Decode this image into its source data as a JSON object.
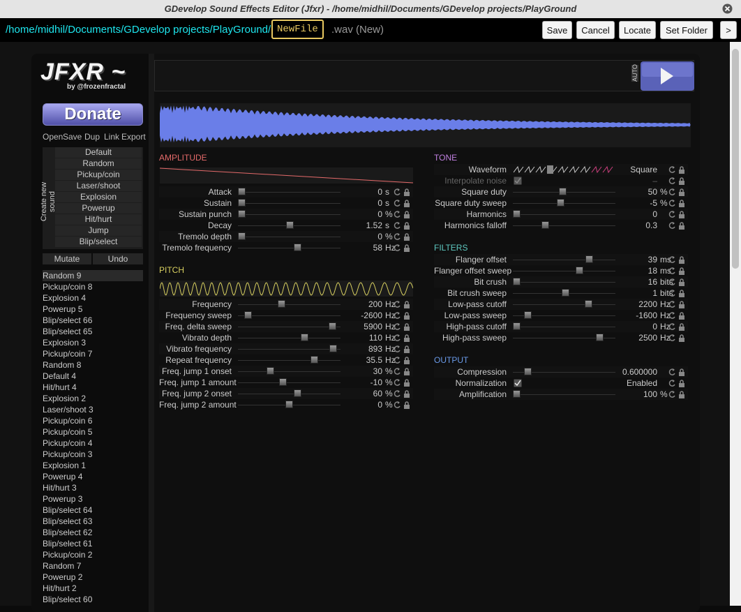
{
  "window": {
    "title": "GDevelop Sound Effects Editor (Jfxr) - /home/midhil/Documents/GDevelop projects/PlayGround"
  },
  "toolbar": {
    "path": "/home/midhil/Documents/GDevelop projects/PlayGround/",
    "filename": "NewFile",
    "suffix": ".wav (New)",
    "buttons": [
      "Save",
      "Cancel",
      "Locate",
      "Set Folder",
      ">"
    ]
  },
  "sidebar": {
    "logo": "JFXR ~",
    "byline": "by @frozenfractal",
    "donate": "Donate",
    "file_actions": [
      "Open",
      "Save",
      "Dup",
      "Link",
      "Export"
    ],
    "create_label": "Create new sound",
    "presets": [
      "Default",
      "Random",
      "Pickup/coin",
      "Laser/shoot",
      "Explosion",
      "Powerup",
      "Hit/hurt",
      "Jump",
      "Blip/select"
    ],
    "mutate": "Mutate",
    "undo": "Undo",
    "history": [
      "Random 9",
      "Pickup/coin 8",
      "Explosion 4",
      "Powerup 5",
      "Blip/select 66",
      "Blip/select 65",
      "Explosion 3",
      "Pickup/coin 7",
      "Random 8",
      "Default 4",
      "Hit/hurt 4",
      "Explosion 2",
      "Laser/shoot 3",
      "Pickup/coin 6",
      "Pickup/coin 5",
      "Pickup/coin 4",
      "Pickup/coin 3",
      "Explosion 1",
      "Powerup 4",
      "Hit/hurt 3",
      "Powerup 3",
      "Blip/select 64",
      "Blip/select 63",
      "Blip/select 62",
      "Blip/select 61",
      "Pickup/coin 2",
      "Random 7",
      "Powerup 2",
      "Hit/hurt 2",
      "Blip/select 60"
    ]
  },
  "player": {
    "auto": "AUTO"
  },
  "sections": [
    {
      "title": "AMPLITUDE",
      "params": [
        {
          "label": "Attack",
          "value": "0",
          "unit": "s"
        },
        {
          "label": "Sustain",
          "value": "0",
          "unit": "s"
        },
        {
          "label": "Sustain punch",
          "value": "0",
          "unit": "%"
        },
        {
          "label": "Decay",
          "value": "1.52",
          "unit": "s"
        },
        {
          "label": "Tremolo depth",
          "value": "0",
          "unit": "%"
        },
        {
          "label": "Tremolo frequency",
          "value": "58",
          "unit": "Hz"
        }
      ]
    },
    {
      "title": "PITCH",
      "params": [
        {
          "label": "Frequency",
          "value": "200",
          "unit": "Hz"
        },
        {
          "label": "Frequency sweep",
          "value": "-2600",
          "unit": "Hz"
        },
        {
          "label": "Freq. delta sweep",
          "value": "5900",
          "unit": "Hz"
        },
        {
          "label": "Vibrato depth",
          "value": "110",
          "unit": "Hz"
        },
        {
          "label": "Vibrato frequency",
          "value": "893",
          "unit": "Hz"
        },
        {
          "label": "Repeat frequency",
          "value": "35.5",
          "unit": "Hz"
        },
        {
          "label": "Freq. jump 1 onset",
          "value": "30",
          "unit": "%"
        },
        {
          "label": "Freq. jump 1 amount",
          "value": "-10",
          "unit": "%"
        },
        {
          "label": "Freq. jump 2 onset",
          "value": "60",
          "unit": "%"
        },
        {
          "label": "Freq. jump 2 amount",
          "value": "0",
          "unit": "%"
        }
      ]
    },
    {
      "title": "TONE",
      "params": [
        {
          "label": "Waveform",
          "value": "Square"
        },
        {
          "label": "Interpolate noise",
          "value": "–"
        },
        {
          "label": "Square duty",
          "value": "50",
          "unit": "%"
        },
        {
          "label": "Square duty sweep",
          "value": "-5",
          "unit": "%"
        },
        {
          "label": "Harmonics",
          "value": "0"
        },
        {
          "label": "Harmonics falloff",
          "value": "0.3"
        }
      ]
    },
    {
      "title": "FILTERS",
      "params": [
        {
          "label": "Flanger offset",
          "value": "39",
          "unit": "ms"
        },
        {
          "label": "Flanger offset sweep",
          "value": "18",
          "unit": "ms"
        },
        {
          "label": "Bit crush",
          "value": "16",
          "unit": "bits"
        },
        {
          "label": "Bit crush sweep",
          "value": "1",
          "unit": "bits"
        },
        {
          "label": "Low-pass cutoff",
          "value": "2200",
          "unit": "Hz"
        },
        {
          "label": "Low-pass sweep",
          "value": "-1600",
          "unit": "Hz"
        },
        {
          "label": "High-pass cutoff",
          "value": "0",
          "unit": "Hz"
        },
        {
          "label": "High-pass sweep",
          "value": "2500",
          "unit": "Hz"
        }
      ]
    },
    {
      "title": "OUTPUT",
      "params": [
        {
          "label": "Compression",
          "value": "0.600000"
        },
        {
          "label": "Normalization",
          "value": "Enabled"
        },
        {
          "label": "Amplification",
          "value": "100",
          "unit": "%"
        }
      ]
    }
  ]
}
